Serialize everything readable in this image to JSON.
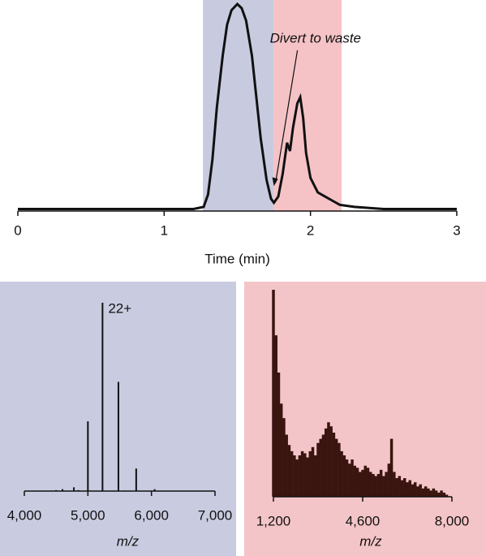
{
  "chart_data": [
    {
      "type": "line",
      "xlabel": "Time (min)",
      "xlim": [
        0,
        3
      ],
      "xticks": [
        0,
        1,
        2,
        3
      ],
      "ylim": [
        0,
        100
      ],
      "color": "#111111",
      "spans": [
        {
          "xmin": 1.265,
          "xmax": 1.747,
          "color": "#c8cbe0"
        },
        {
          "xmin": 1.747,
          "xmax": 2.213,
          "color": "#f5c3c6"
        }
      ],
      "annotation": {
        "text": "Divert to waste",
        "x": 1.75,
        "y": 12
      },
      "x": [
        0,
        0.5,
        1.0,
        1.2,
        1.27,
        1.3,
        1.33,
        1.36,
        1.4,
        1.43,
        1.46,
        1.5,
        1.53,
        1.56,
        1.6,
        1.63,
        1.66,
        1.7,
        1.73,
        1.75,
        1.78,
        1.81,
        1.84,
        1.86,
        1.88,
        1.91,
        1.93,
        1.95,
        1.97,
        2.0,
        2.05,
        2.1,
        2.15,
        2.2,
        2.3,
        2.5,
        3.0
      ],
      "values": [
        1,
        1,
        1,
        1,
        2,
        8,
        25,
        50,
        75,
        90,
        97,
        100,
        98,
        92,
        75,
        55,
        35,
        15,
        6,
        4,
        7,
        18,
        33,
        29,
        40,
        52,
        55,
        45,
        28,
        16,
        9,
        7,
        5,
        3,
        2,
        1,
        1
      ]
    },
    {
      "type": "spectrum",
      "xlabel": "m/z",
      "background": "#c9cce0",
      "color": "#111111",
      "xlim": [
        4000,
        7000
      ],
      "ylim": [
        0,
        100
      ],
      "xticks": [
        {
          "value": 4000,
          "label": "4,000"
        },
        {
          "value": 5000,
          "label": "5,000"
        },
        {
          "value": 6000,
          "label": "6,000"
        },
        {
          "value": 7000,
          "label": "7,000"
        }
      ],
      "peak_label": {
        "text": "22+",
        "index": 5
      },
      "x": [
        4500,
        4600,
        4780,
        4850,
        5000,
        5230,
        5480,
        5760,
        6050
      ],
      "values": [
        0.5,
        1,
        2,
        0.5,
        37,
        100,
        58,
        12,
        1
      ]
    },
    {
      "type": "spectrum",
      "xlabel": "m/z",
      "background": "#f4c5c8",
      "color": "#3a1510",
      "xlim": [
        1200,
        8000
      ],
      "ylim": [
        0,
        100
      ],
      "xticks": [
        {
          "value": 1200,
          "label": "1,200"
        },
        {
          "value": 4600,
          "label": "4,600"
        },
        {
          "value": 8000,
          "label": "8,000"
        }
      ],
      "x": [
        1200,
        1300,
        1400,
        1500,
        1600,
        1700,
        1800,
        1900,
        2000,
        2100,
        2200,
        2300,
        2400,
        2500,
        2600,
        2700,
        2800,
        2900,
        3000,
        3100,
        3200,
        3300,
        3400,
        3500,
        3600,
        3700,
        3800,
        3900,
        4000,
        4100,
        4200,
        4300,
        4400,
        4500,
        4600,
        4700,
        4800,
        4900,
        5000,
        5100,
        5200,
        5300,
        5400,
        5500,
        5600,
        5700,
        5800,
        5900,
        6000,
        6100,
        6200,
        6300,
        6400,
        6500,
        6600,
        6700,
        6800,
        6900,
        7000,
        7100,
        7200,
        7300,
        7400,
        7500,
        7600,
        7700,
        7800
      ],
      "values": [
        100,
        78,
        60,
        45,
        38,
        30,
        25,
        22,
        20,
        18,
        20,
        22,
        21,
        19,
        22,
        24,
        20,
        26,
        28,
        30,
        33,
        36,
        34,
        31,
        28,
        26,
        22,
        20,
        18,
        16,
        18,
        15,
        14,
        12,
        13,
        15,
        14,
        12,
        11,
        10,
        11,
        13,
        10,
        12,
        16,
        28,
        12,
        9,
        10,
        8,
        9,
        7,
        8,
        6,
        7,
        5,
        6,
        4,
        5,
        4,
        3,
        4,
        3,
        2,
        3,
        2,
        1
      ]
    }
  ]
}
